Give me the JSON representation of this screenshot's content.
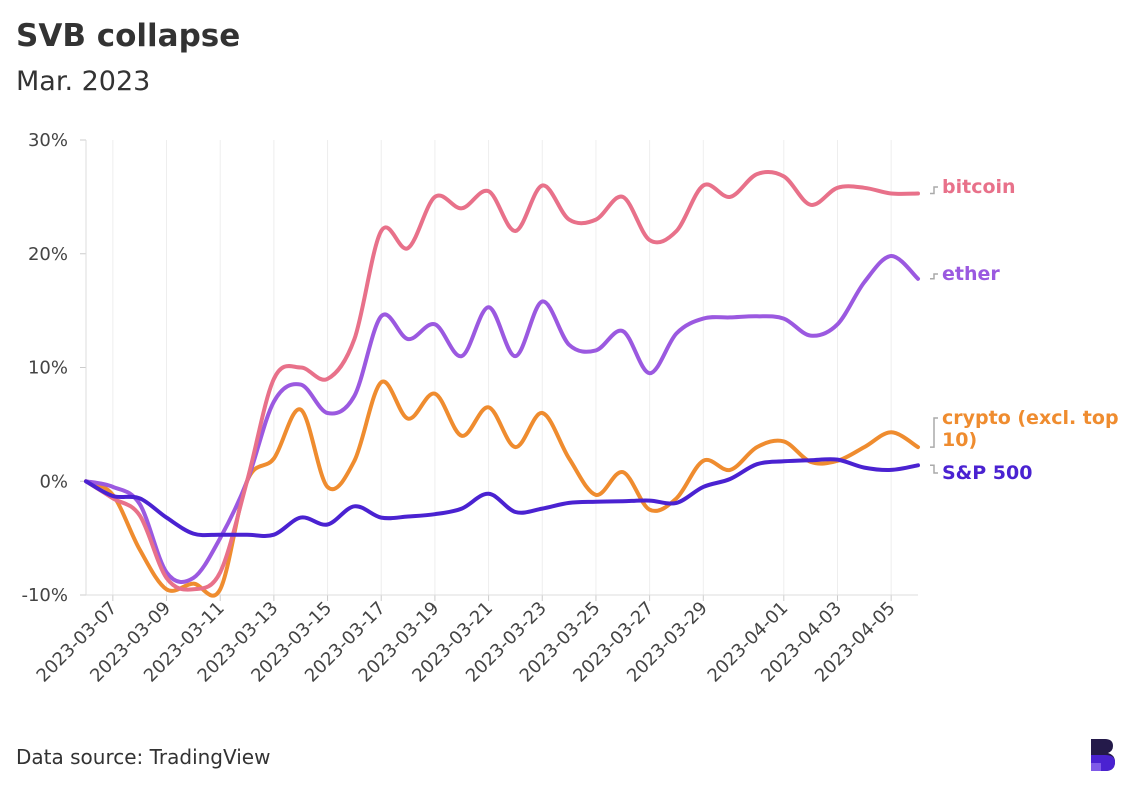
{
  "title": "SVB collapse",
  "subtitle": "Mar. 2023",
  "source": "Data source: TradingView",
  "chart_data": {
    "type": "line",
    "x": [
      "2023-03-06",
      "2023-03-07",
      "2023-03-08",
      "2023-03-09",
      "2023-03-10",
      "2023-03-11",
      "2023-03-12",
      "2023-03-13",
      "2023-03-14",
      "2023-03-15",
      "2023-03-16",
      "2023-03-17",
      "2023-03-18",
      "2023-03-19",
      "2023-03-20",
      "2023-03-21",
      "2023-03-22",
      "2023-03-23",
      "2023-03-24",
      "2023-03-25",
      "2023-03-26",
      "2023-03-27",
      "2023-03-28",
      "2023-03-29",
      "2023-03-30",
      "2023-03-31",
      "2023-04-01",
      "2023-04-02",
      "2023-04-03",
      "2023-04-04",
      "2023-04-05",
      "2023-04-06"
    ],
    "x_ticks": [
      "2023-03-07",
      "2023-03-09",
      "2023-03-11",
      "2023-03-13",
      "2023-03-15",
      "2023-03-17",
      "2023-03-19",
      "2023-03-21",
      "2023-03-23",
      "2023-03-25",
      "2023-03-27",
      "2023-03-29",
      "2023-04-01",
      "2023-04-03",
      "2023-04-05"
    ],
    "y_ticks": [
      -10,
      0,
      10,
      20,
      30
    ],
    "y_tick_labels": [
      "-10%",
      "0%",
      "10%",
      "20%",
      "30%"
    ],
    "ylim": [
      -10,
      30
    ],
    "grid": "vertical",
    "series": [
      {
        "name": "bitcoin",
        "color": "#e8718a",
        "values": [
          0,
          -1.5,
          -3,
          -8.5,
          -9.5,
          -8,
          0,
          9,
          10,
          9,
          12.5,
          22,
          20.5,
          25,
          24,
          25.5,
          22,
          26,
          23,
          23,
          25,
          21.2,
          22,
          26,
          25,
          27,
          26.8,
          24.3,
          25.8,
          25.8,
          25.3,
          25.3
        ]
      },
      {
        "name": "ether",
        "color": "#9b59e0",
        "values": [
          0,
          -0.5,
          -2,
          -8,
          -8.5,
          -5,
          0,
          7,
          8.5,
          6,
          7.5,
          14.5,
          12.5,
          13.8,
          11,
          15.3,
          11,
          15.8,
          12,
          11.5,
          13.2,
          9.5,
          13,
          14.3,
          14.4,
          14.5,
          14.3,
          12.8,
          13.8,
          17.5,
          19.8,
          17.8
        ]
      },
      {
        "name": "crypto (excl. top 10)",
        "color": "#ef8c2f",
        "values": [
          0,
          -1.2,
          -6,
          -9.5,
          -9,
          -9.5,
          0,
          2,
          6.3,
          -0.5,
          1.8,
          8.7,
          5.5,
          7.7,
          4,
          6.5,
          3,
          6,
          2,
          -1.2,
          0.8,
          -2.5,
          -1.5,
          1.8,
          1,
          3,
          3.5,
          1.7,
          1.8,
          3,
          4.3,
          3
        ]
      },
      {
        "name": "S&P 500",
        "color": "#4a22d1",
        "values": [
          0,
          -1.3,
          -1.5,
          -3.2,
          -4.6,
          -4.7,
          -4.7,
          -4.7,
          -3.2,
          -3.8,
          -2.2,
          -3.2,
          -3.1,
          -2.9,
          -2.4,
          -1.1,
          -2.7,
          -2.4,
          -1.9,
          -1.8,
          -1.75,
          -1.7,
          -1.9,
          -0.5,
          0.2,
          1.5,
          1.75,
          1.85,
          1.9,
          1.2,
          1.0,
          1.4
        ]
      }
    ]
  }
}
